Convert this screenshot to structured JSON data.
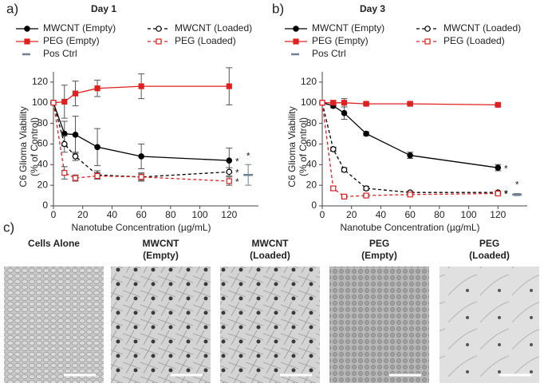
{
  "panel_labels": [
    "a)",
    "b)",
    "c)"
  ],
  "chart_data": [
    {
      "type": "line",
      "title": "Day 1",
      "xlabel": "Nanotube Concentration (µg/mL)",
      "ylabel": [
        "C6 Glioma Viability",
        "(% of Control)"
      ],
      "x": [
        0,
        7.5,
        15,
        30,
        60,
        120
      ],
      "xlim": [
        0,
        140
      ],
      "xticks": [
        0,
        20,
        40,
        60,
        80,
        100,
        120
      ],
      "ylim": [
        0,
        130
      ],
      "yticks": [
        0,
        20,
        40,
        60,
        80,
        100,
        120
      ],
      "series": [
        {
          "name": "MWCNT (Empty)",
          "color": "#000000",
          "marker": "circle",
          "filled": true,
          "dashed": false,
          "values": [
            100,
            70,
            69,
            57,
            48,
            44
          ],
          "errors": [
            0,
            12,
            18,
            18,
            12,
            12
          ],
          "significance": "*"
        },
        {
          "name": "MWCNT (Loaded)",
          "color": "#000000",
          "marker": "circle",
          "filled": false,
          "dashed": true,
          "values": [
            100,
            60,
            48,
            30,
            28,
            33
          ],
          "errors": [
            0,
            8,
            4,
            4,
            4,
            4
          ],
          "significance": "*"
        },
        {
          "name": "PEG (Empty)",
          "color": "#e02020",
          "marker": "square",
          "filled": true,
          "dashed": false,
          "values": [
            100,
            101,
            109,
            114,
            116,
            116
          ],
          "errors": [
            0,
            16,
            12,
            8,
            12,
            18
          ]
        },
        {
          "name": "PEG (Loaded)",
          "color": "#e02020",
          "marker": "square",
          "filled": false,
          "dashed": true,
          "values": [
            100,
            32,
            27,
            29,
            28,
            24
          ],
          "errors": [
            0,
            6,
            3,
            3,
            3,
            4
          ],
          "significance": "*"
        },
        {
          "name": "Pos Ctrl",
          "color": "#708090",
          "marker": "dash",
          "x": [
            133
          ],
          "values": [
            30
          ],
          "errors": [
            10
          ],
          "significance": "*"
        }
      ]
    },
    {
      "type": "line",
      "title": "Day 3",
      "xlabel": "Nanotube Concentration (µg/mL)",
      "ylabel": [
        "C6 Glioma Viability",
        "(% of Control)"
      ],
      "x": [
        0,
        7.5,
        15,
        30,
        60,
        120
      ],
      "xlim": [
        0,
        140
      ],
      "xticks": [
        0,
        20,
        40,
        60,
        80,
        100,
        120
      ],
      "ylim": [
        0,
        130
      ],
      "yticks": [
        0,
        20,
        40,
        60,
        80,
        100,
        120
      ],
      "series": [
        {
          "name": "MWCNT (Empty)",
          "color": "#000000",
          "marker": "circle",
          "filled": true,
          "dashed": false,
          "values": [
            100,
            97,
            90,
            70,
            49,
            37
          ],
          "errors": [
            0,
            2,
            6,
            2,
            3,
            3
          ],
          "significance": "*"
        },
        {
          "name": "MWCNT (Loaded)",
          "color": "#000000",
          "marker": "circle",
          "filled": false,
          "dashed": true,
          "values": [
            100,
            55,
            35,
            17,
            13,
            13
          ],
          "errors": [
            0,
            2,
            2,
            2,
            1,
            1
          ],
          "significance": "*"
        },
        {
          "name": "PEG (Empty)",
          "color": "#e02020",
          "marker": "square",
          "filled": true,
          "dashed": false,
          "values": [
            100,
            100,
            100,
            99,
            99,
            98
          ],
          "errors": [
            0,
            2,
            4,
            1,
            1,
            1
          ]
        },
        {
          "name": "PEG (Loaded)",
          "color": "#e02020",
          "marker": "square",
          "filled": false,
          "dashed": true,
          "values": [
            100,
            17,
            9,
            10,
            11,
            12
          ],
          "errors": [
            0,
            2,
            1,
            1,
            1,
            1
          ],
          "significance": "*"
        },
        {
          "name": "Pos Ctrl",
          "color": "#708090",
          "marker": "dash",
          "x": [
            133
          ],
          "values": [
            11
          ],
          "errors": [
            1
          ],
          "significance": "*"
        }
      ]
    }
  ],
  "micrographs": [
    {
      "label": [
        "Cells Alone"
      ]
    },
    {
      "label": [
        "MWCNT",
        "(Empty)"
      ]
    },
    {
      "label": [
        "MWCNT",
        "(Loaded)"
      ]
    },
    {
      "label": [
        "PEG",
        "(Empty)"
      ]
    },
    {
      "label": [
        "PEG",
        "(Loaded)"
      ]
    }
  ]
}
